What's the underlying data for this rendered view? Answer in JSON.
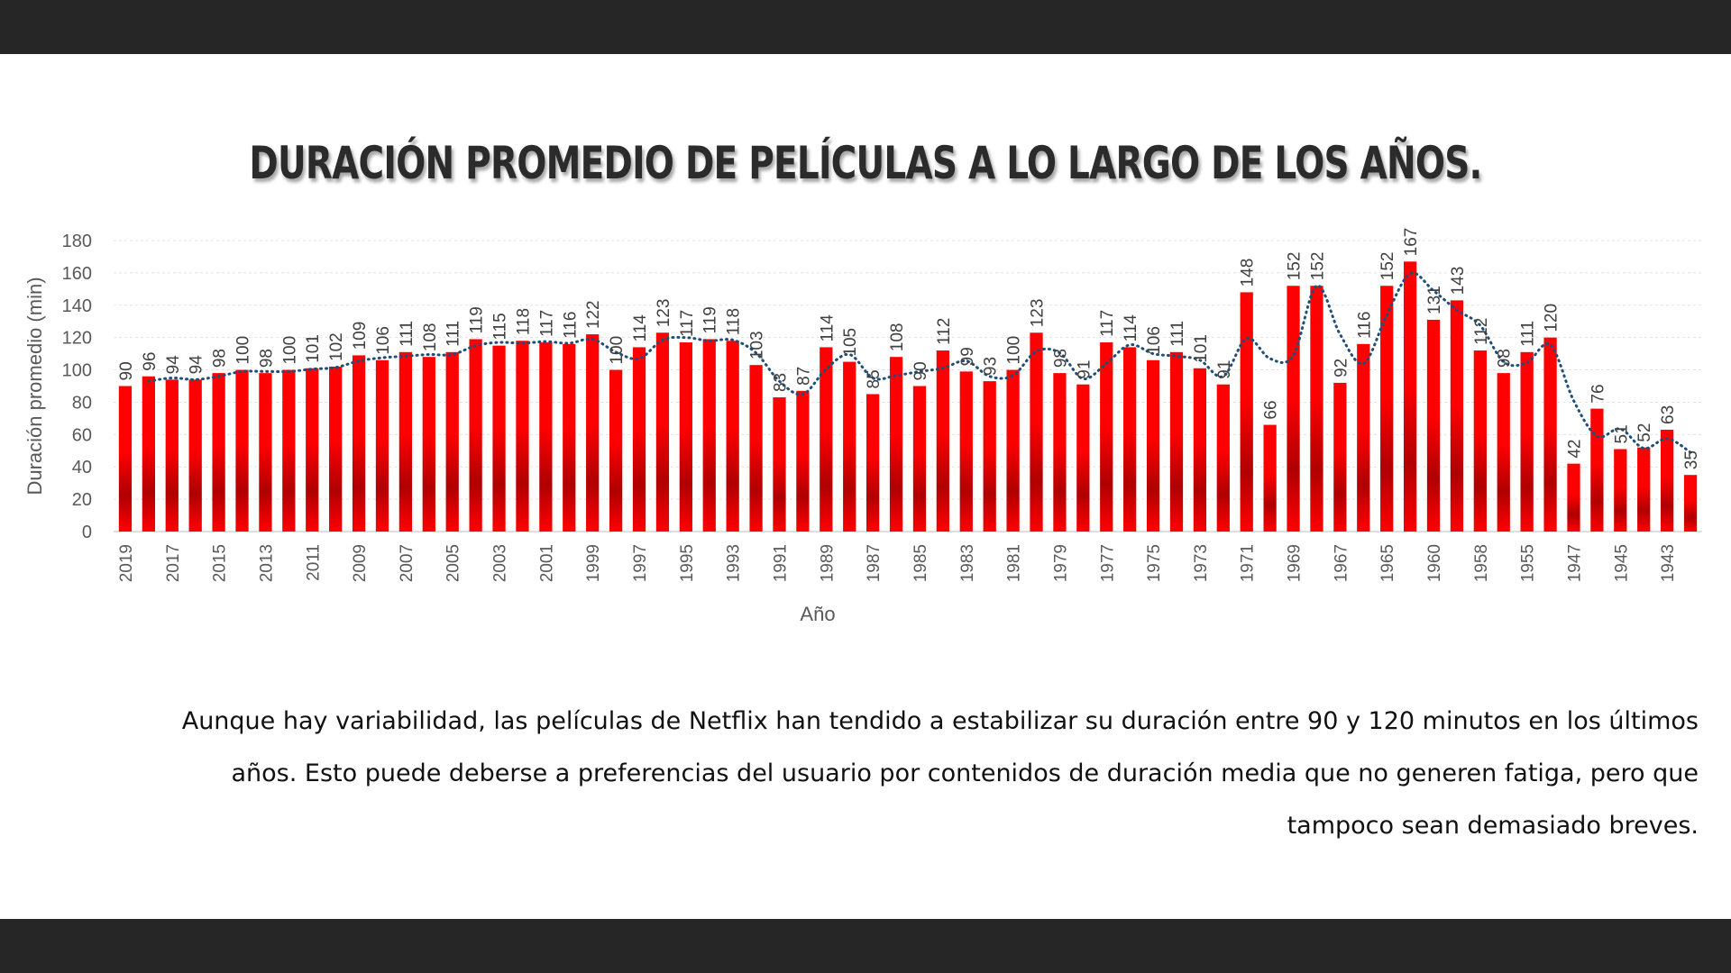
{
  "slide": {
    "title": "Duración promedio de películas a lo largo de los años.",
    "caption": "Aunque hay variabilidad, las películas de Netflix han tendido a estabilizar su duración entre 90 y 120 minutos en los últimos años. Esto puede deberse a preferencias del usuario por contenidos de duración media que no generen fatiga, pero que tampoco sean demasiado breves."
  },
  "colors": {
    "bar": "#ff0000",
    "bar_dark": "#b00000",
    "trend": "#1f4e79",
    "frame": "#262626"
  },
  "chart_data": {
    "type": "bar",
    "ylabel": "Duración promedio (min)",
    "xlabel": "Año",
    "ylim": [
      0,
      180
    ],
    "yticks": [
      0,
      20,
      40,
      60,
      80,
      100,
      120,
      140,
      160,
      180
    ],
    "grid": true,
    "trendline": "moving average (2 periods), dotted",
    "categories": [
      "2019",
      "",
      "2017",
      "",
      "2015",
      "",
      "2013",
      "",
      "2011",
      "",
      "2009",
      "",
      "2007",
      "",
      "2005",
      "",
      "2003",
      "",
      "2001",
      "",
      "1999",
      "",
      "1997",
      "",
      "1995",
      "",
      "1993",
      "",
      "1991",
      "",
      "1989",
      "",
      "1987",
      "",
      "1985",
      "",
      "1983",
      "",
      "1981",
      "",
      "1979",
      "",
      "1977",
      "",
      "1975",
      "",
      "1973",
      "",
      "1971",
      "",
      "1969",
      "",
      "1967",
      "",
      "1965",
      "",
      "1960",
      "",
      "1958",
      "",
      "1955",
      "",
      "1947",
      "",
      "1945",
      "",
      "1943",
      ""
    ],
    "values": [
      90,
      96,
      94,
      94,
      98,
      100,
      98,
      100,
      101,
      102,
      109,
      106,
      111,
      108,
      111,
      119,
      115,
      118,
      117,
      116,
      122,
      100,
      114,
      123,
      117,
      119,
      118,
      103,
      83,
      87,
      114,
      105,
      85,
      108,
      90,
      112,
      99,
      93,
      100,
      123,
      98,
      91,
      117,
      114,
      106,
      111,
      101,
      91,
      148,
      66,
      152,
      152,
      92,
      116,
      152,
      167,
      131,
      143,
      112,
      98,
      111,
      120,
      42,
      76,
      51,
      52,
      63,
      35
    ]
  }
}
